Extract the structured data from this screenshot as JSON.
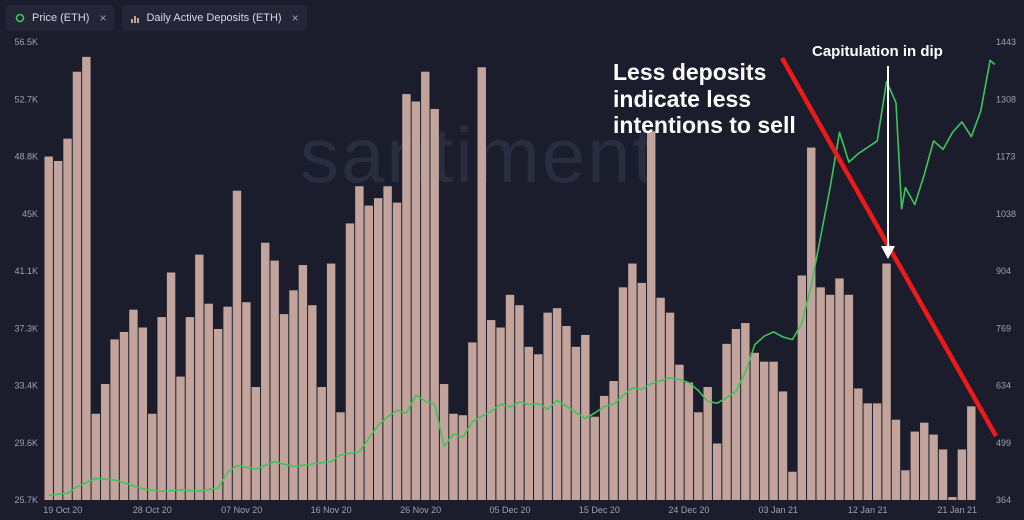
{
  "legend": {
    "price_label": "Price (ETH)",
    "deposits_label": "Daily Active Deposits (ETH)",
    "close_glyph": "×",
    "price_color": "#3ec45a",
    "deposits_color": "#c2a49c"
  },
  "watermark": "santiment",
  "annotations": {
    "main_lines": [
      "Less deposits",
      "indicate less",
      "intentions to sell"
    ],
    "dip_label": "Capitulation in dip"
  },
  "chart_data": {
    "type": "bar",
    "x_ticks": [
      "19 Oct 20",
      "28 Oct 20",
      "07 Nov 20",
      "16 Nov 20",
      "26 Nov 20",
      "05 Dec 20",
      "15 Dec 20",
      "24 Dec 20",
      "03 Jan 21",
      "12 Jan 21",
      "21 Jan 21"
    ],
    "y_left_ticks": [
      "56.5K",
      "52.7K",
      "48.8K",
      "45K",
      "41.1K",
      "37.3K",
      "33.4K",
      "29.6K",
      "25.7K"
    ],
    "y_right_ticks": [
      "1443",
      "1308",
      "1173",
      "1038",
      "904",
      "769",
      "634",
      "499",
      "364"
    ],
    "y_left_range": [
      25700,
      56500
    ],
    "y_right_range": [
      364,
      1443
    ],
    "series": [
      {
        "name": "Daily Active Deposits (ETH)",
        "axis": "left",
        "values": [
          48800,
          48500,
          50000,
          54500,
          55500,
          31500,
          33500,
          36500,
          37000,
          38500,
          37300,
          31500,
          38000,
          41000,
          34000,
          38000,
          42200,
          38900,
          37200,
          38700,
          46500,
          39000,
          33300,
          43000,
          41800,
          38200,
          39800,
          41500,
          38800,
          33300,
          41600,
          31600,
          44300,
          46800,
          45500,
          46000,
          46800,
          45700,
          53000,
          52500,
          54500,
          52000,
          33500,
          31500,
          31400,
          36300,
          54800,
          37800,
          37300,
          39500,
          38800,
          36000,
          35500,
          38300,
          38600,
          37400,
          36000,
          36800,
          31300,
          32700,
          33700,
          40000,
          41600,
          40300,
          50500,
          39300,
          38300,
          34800,
          33600,
          31600,
          33300,
          29500,
          36200,
          37200,
          37600,
          35600,
          35000,
          35000,
          33000,
          27600,
          40800,
          49400,
          40000,
          39500,
          40600,
          39500,
          33200,
          32200,
          32200,
          41600,
          31100,
          27700,
          30300,
          30900,
          30100,
          29100,
          25900,
          29100,
          32000
        ],
        "color": "#c2a49c"
      },
      {
        "name": "Price (ETH)",
        "axis": "right",
        "points": [
          [
            0,
            375
          ],
          [
            2,
            380
          ],
          [
            3,
            395
          ],
          [
            5,
            415
          ],
          [
            7,
            411
          ],
          [
            8,
            405
          ],
          [
            10,
            390
          ],
          [
            12,
            384
          ],
          [
            14,
            388
          ],
          [
            16,
            385
          ],
          [
            18,
            392
          ],
          [
            19,
            430
          ],
          [
            20,
            445
          ],
          [
            22,
            437
          ],
          [
            24,
            454
          ],
          [
            26,
            443
          ],
          [
            28,
            449
          ],
          [
            30,
            455
          ],
          [
            31,
            470
          ],
          [
            33,
            478
          ],
          [
            35,
            540
          ],
          [
            36,
            560
          ],
          [
            37,
            575
          ],
          [
            38,
            569
          ],
          [
            39,
            611
          ],
          [
            40,
            597
          ],
          [
            41,
            590
          ],
          [
            42,
            490
          ],
          [
            43,
            520
          ],
          [
            44,
            512
          ],
          [
            45,
            548
          ],
          [
            46,
            562
          ],
          [
            47,
            573
          ],
          [
            48,
            590
          ],
          [
            49,
            583
          ],
          [
            50,
            595
          ],
          [
            51,
            589
          ],
          [
            52,
            591
          ],
          [
            53,
            578
          ],
          [
            54,
            599
          ],
          [
            55,
            585
          ],
          [
            56,
            570
          ],
          [
            57,
            556
          ],
          [
            58,
            569
          ],
          [
            59,
            584
          ],
          [
            60,
            590
          ],
          [
            61,
            610
          ],
          [
            62,
            628
          ],
          [
            63,
            625
          ],
          [
            64,
            638
          ],
          [
            65,
            645
          ],
          [
            66,
            652
          ],
          [
            67,
            648
          ],
          [
            68,
            640
          ],
          [
            69,
            622
          ],
          [
            70,
            596
          ],
          [
            71,
            592
          ],
          [
            72,
            605
          ],
          [
            73,
            620
          ],
          [
            74,
            665
          ],
          [
            75,
            730
          ],
          [
            76,
            750
          ],
          [
            77,
            760
          ],
          [
            78,
            748
          ],
          [
            79,
            742
          ],
          [
            80,
            780
          ],
          [
            81,
            870
          ],
          [
            82,
            985
          ],
          [
            83,
            1100
          ],
          [
            84,
            1230
          ],
          [
            85,
            1160
          ],
          [
            86,
            1180
          ],
          [
            87,
            1195
          ],
          [
            88,
            1210
          ],
          [
            89,
            1350
          ],
          [
            90,
            1300
          ],
          [
            90.6,
            1050
          ],
          [
            91,
            1100
          ],
          [
            92,
            1060
          ],
          [
            93,
            1130
          ],
          [
            94,
            1210
          ],
          [
            95,
            1190
          ],
          [
            96,
            1230
          ],
          [
            97,
            1255
          ],
          [
            98,
            1220
          ],
          [
            99,
            1280
          ],
          [
            100,
            1400
          ],
          [
            100.5,
            1390
          ]
        ],
        "color": "#3ec45a"
      }
    ],
    "annotations": [
      {
        "text": "Less deposits indicate less intentions to sell",
        "type": "red trend line"
      },
      {
        "text": "Capitulation in dip",
        "type": "white arrow"
      }
    ],
    "grid": false,
    "legend_position": "top-left"
  }
}
